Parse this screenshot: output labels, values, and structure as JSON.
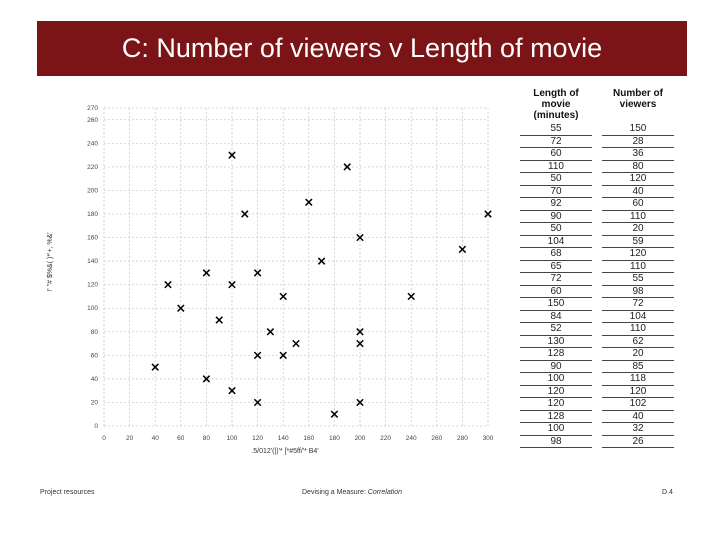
{
  "title": "C: Number of viewers v Length of movie",
  "table": {
    "headers": [
      "Length of movie (minutes)",
      "Number of viewers"
    ],
    "rows": [
      [
        "55",
        "150"
      ],
      [
        "72",
        "28"
      ],
      [
        "60",
        "36"
      ],
      [
        "110",
        "80"
      ],
      [
        "50",
        "120"
      ],
      [
        "70",
        "40"
      ],
      [
        "92",
        "60"
      ],
      [
        "90",
        "110"
      ],
      [
        "50",
        "20"
      ],
      [
        "104",
        "59"
      ],
      [
        "68",
        "120"
      ],
      [
        "65",
        "110"
      ],
      [
        "72",
        "55"
      ],
      [
        "60",
        "98"
      ],
      [
        "150",
        "72"
      ],
      [
        "84",
        "104"
      ],
      [
        "52",
        "110"
      ],
      [
        "130",
        "62"
      ],
      [
        "128",
        "20"
      ],
      [
        "90",
        "85"
      ],
      [
        "100",
        "118"
      ],
      [
        "120",
        "120"
      ],
      [
        "120",
        "102"
      ],
      [
        "128",
        "40"
      ],
      [
        "100",
        "32"
      ],
      [
        "98",
        "26"
      ]
    ]
  },
  "chart_data": {
    "type": "scatter",
    "points": [
      {
        "x": 100,
        "y": 230
      },
      {
        "x": 110,
        "y": 180
      },
      {
        "x": 120,
        "y": 130
      },
      {
        "x": 100,
        "y": 120
      },
      {
        "x": 130,
        "y": 80
      },
      {
        "x": 100,
        "y": 30
      },
      {
        "x": 300,
        "y": 180
      },
      {
        "x": 280,
        "y": 150
      },
      {
        "x": 120,
        "y": 60
      },
      {
        "x": 160,
        "y": 190
      },
      {
        "x": 90,
        "y": 90
      },
      {
        "x": 80,
        "y": 130
      },
      {
        "x": 50,
        "y": 120
      },
      {
        "x": 40,
        "y": 50
      },
      {
        "x": 200,
        "y": 70
      },
      {
        "x": 140,
        "y": 110
      },
      {
        "x": 120,
        "y": 20
      },
      {
        "x": 80,
        "y": 40
      },
      {
        "x": 60,
        "y": 100
      },
      {
        "x": 150,
        "y": 70
      },
      {
        "x": 170,
        "y": 140
      },
      {
        "x": 200,
        "y": 80
      },
      {
        "x": 140,
        "y": 60
      },
      {
        "x": 180,
        "y": 10
      },
      {
        "x": 200,
        "y": 20
      },
      {
        "x": 190,
        "y": 220
      },
      {
        "x": 200,
        "y": 160
      },
      {
        "x": 240,
        "y": 110
      }
    ],
    "xlim": [
      0,
      300
    ],
    "ylim": [
      0,
      270
    ],
    "xticks": [
      0,
      20,
      40,
      60,
      80,
      100,
      120,
      140,
      160,
      180,
      200,
      220,
      240,
      260,
      280,
      300
    ],
    "yticks": [
      0,
      20,
      40,
      60,
      80,
      100,
      120,
      140,
      160,
      180,
      200,
      220,
      240,
      260,
      270
    ],
    "xlabel": ".5/012'(|)'* [*#5ff/'* B4'",
    "ylabel": "!' \"# $%&( )*'+, %&'",
    "grid": true
  },
  "footer": {
    "left": "Project resources",
    "center_prefix": "Devising a Measure: ",
    "center_emph": "Correlation",
    "right": "D.4"
  }
}
